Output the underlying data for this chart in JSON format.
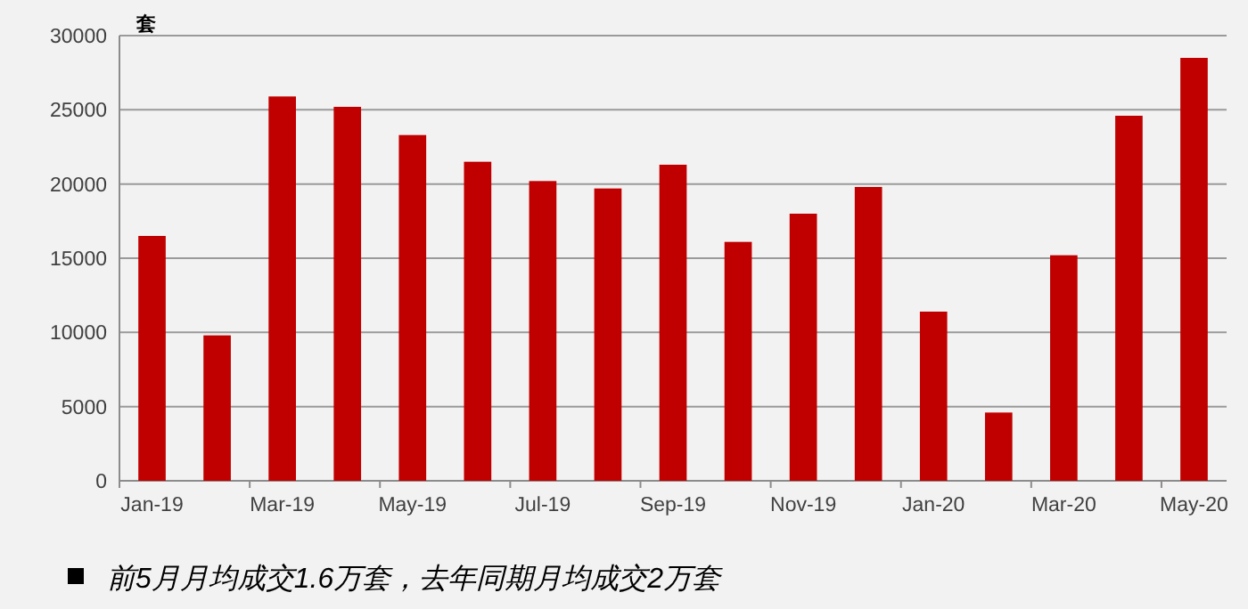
{
  "chart_data": {
    "type": "bar",
    "ylabel": "套",
    "categories": [
      "Jan-19",
      null,
      "Mar-19",
      null,
      "May-19",
      null,
      "Jul-19",
      null,
      "Sep-19",
      null,
      "Nov-19",
      null,
      "Jan-20",
      null,
      "Mar-20",
      null,
      "May-20"
    ],
    "values": [
      16500,
      9800,
      25900,
      25200,
      23300,
      21500,
      20200,
      19700,
      21300,
      16100,
      18000,
      19800,
      11400,
      4600,
      15200,
      24600,
      28500
    ],
    "color": "#c00000",
    "ylim": [
      0,
      30000
    ],
    "yticks": [
      0,
      5000,
      10000,
      15000,
      20000,
      25000,
      30000
    ],
    "grid": "y",
    "annotations": [
      "前5月月均成交1.6万套，去年同期月均成交2万套"
    ]
  }
}
